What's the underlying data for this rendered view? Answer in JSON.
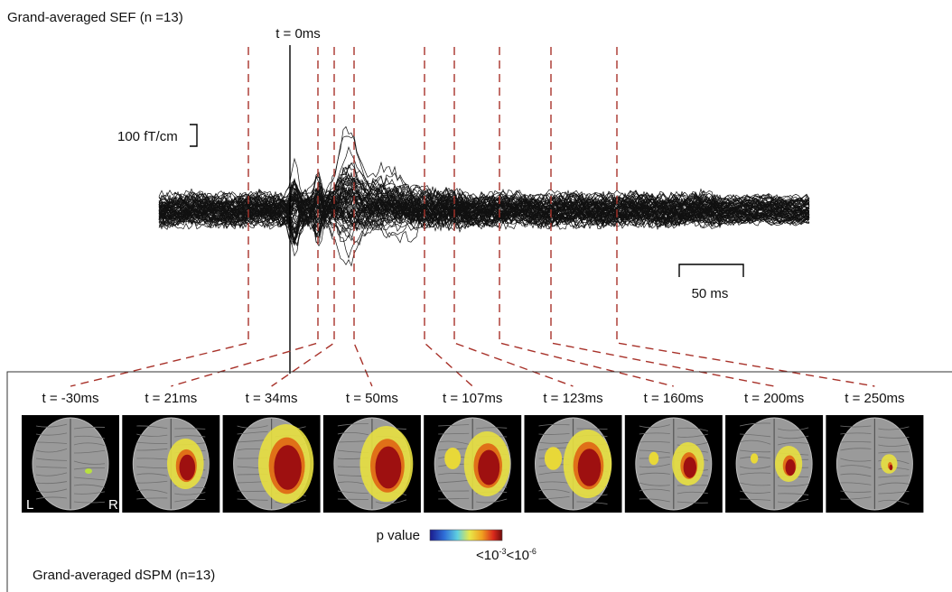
{
  "header": {
    "title": "Grand-averaged SEF (n =13)",
    "zero_label": "t = 0ms"
  },
  "scale": {
    "amplitude": "100 fT/cm",
    "time": "50 ms"
  },
  "panels": [
    {
      "label": "t = -30ms"
    },
    {
      "label": "t = 21ms"
    },
    {
      "label": "t = 34ms"
    },
    {
      "label": "t = 50ms"
    },
    {
      "label": "t = 107ms"
    },
    {
      "label": "t = 123ms"
    },
    {
      "label": "t = 160ms"
    },
    {
      "label": "t = 200ms"
    },
    {
      "label": "t = 250ms"
    }
  ],
  "hemisphere": {
    "left": "L",
    "right": "R"
  },
  "colorbar": {
    "title": "p value",
    "low": {
      "base": "<10",
      "exp": "-3"
    },
    "high": {
      "base": "<10",
      "exp": "-6"
    }
  },
  "footer": {
    "title": "Grand-averaged dSPM (n=13)"
  }
}
